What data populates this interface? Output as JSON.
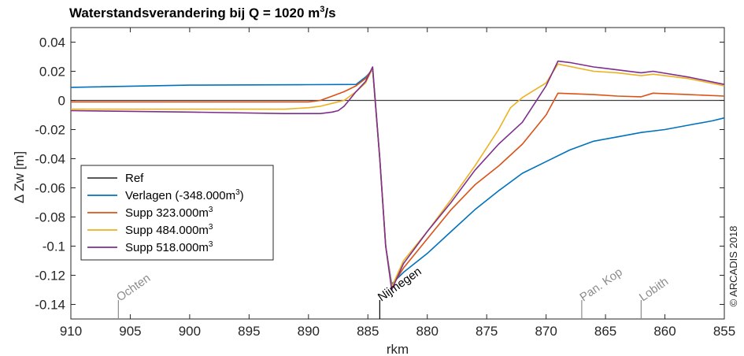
{
  "chart_data": {
    "type": "line",
    "title": {
      "main": "Waterstandsverandering bij Q = 1020 m",
      "sup": "3",
      "tail": "/s"
    },
    "xlabel": "rkm",
    "ylabel": "Δ Zw [m]",
    "xlim": [
      910,
      855
    ],
    "ylim": [
      -0.15,
      0.05
    ],
    "xticks": [
      910,
      905,
      900,
      895,
      890,
      885,
      880,
      875,
      870,
      865,
      860,
      855
    ],
    "yticks": [
      0.04,
      0.02,
      0,
      -0.02,
      -0.04,
      -0.06,
      -0.08,
      -0.1,
      -0.12,
      -0.14
    ],
    "ytick_labels": [
      "0.04",
      "0.02",
      "0",
      "-0.02",
      "-0.04",
      "-0.06",
      "-0.08",
      "-0.1",
      "-0.12",
      "-0.14"
    ],
    "grid": false,
    "legend_position": "lower-left",
    "series": [
      {
        "name": "Ref",
        "name_sup": "",
        "color": "#404040",
        "x": [
          910,
          855
        ],
        "y": [
          0,
          0
        ]
      },
      {
        "name": "Verlagen (-348.000m",
        "name_sup": "3",
        "name_tail": ")",
        "color": "#0072BD",
        "x": [
          910,
          900,
          890,
          886,
          885.2,
          884.6,
          884,
          883.5,
          883,
          882,
          880,
          878,
          876,
          874,
          872,
          870,
          868,
          866,
          864,
          862,
          860,
          858,
          856,
          855
        ],
        "y": [
          0.009,
          0.0105,
          0.0108,
          0.011,
          0.016,
          0.021,
          -0.04,
          -0.1,
          -0.126,
          -0.118,
          -0.105,
          -0.09,
          -0.075,
          -0.062,
          -0.05,
          -0.042,
          -0.034,
          -0.028,
          -0.025,
          -0.022,
          -0.02,
          -0.017,
          -0.014,
          -0.012
        ]
      },
      {
        "name": "Supp 323.000m",
        "name_sup": "3",
        "name_tail": "",
        "color": "#D95319",
        "x": [
          910,
          900,
          892,
          890,
          889,
          888,
          887,
          886,
          885.2,
          884.6,
          884,
          883.5,
          883,
          882,
          880,
          878,
          876,
          874,
          872,
          870,
          869,
          866,
          864,
          862,
          861,
          858,
          855
        ],
        "y": [
          -0.001,
          -0.001,
          -0.001,
          -0.001,
          0.0,
          0.003,
          0.006,
          0.01,
          0.015,
          0.022,
          -0.04,
          -0.1,
          -0.128,
          -0.115,
          -0.095,
          -0.075,
          -0.058,
          -0.045,
          -0.03,
          -0.01,
          0.005,
          0.004,
          0.003,
          0.0025,
          0.005,
          0.004,
          0.003
        ]
      },
      {
        "name": "Supp 484.000m",
        "name_sup": "3",
        "name_tail": "",
        "color": "#EDB120",
        "x": [
          910,
          900,
          892,
          890,
          889,
          888,
          887,
          886,
          885.2,
          884.6,
          884,
          883.5,
          883,
          882,
          880,
          878,
          876,
          874,
          873,
          872,
          870,
          869,
          866,
          864,
          862,
          861,
          858,
          855
        ],
        "y": [
          -0.006,
          -0.006,
          -0.006,
          -0.005,
          -0.004,
          -0.002,
          0.0,
          0.006,
          0.012,
          0.022,
          -0.04,
          -0.1,
          -0.128,
          -0.11,
          -0.09,
          -0.068,
          -0.045,
          -0.02,
          -0.005,
          0.002,
          0.012,
          0.025,
          0.02,
          0.019,
          0.017,
          0.018,
          0.015,
          0.01
        ]
      },
      {
        "name": "Supp 518.000m",
        "name_sup": "3",
        "name_tail": "",
        "color": "#7E2F8E",
        "x": [
          910,
          900,
          892,
          890,
          889,
          888,
          887.5,
          887,
          886,
          885.2,
          884.6,
          884,
          883.5,
          883,
          882,
          880,
          878,
          876,
          874,
          872,
          870,
          869,
          868,
          866,
          864,
          862,
          861,
          858,
          855
        ],
        "y": [
          -0.007,
          -0.008,
          -0.009,
          -0.009,
          -0.009,
          -0.008,
          -0.007,
          -0.004,
          0.006,
          0.013,
          0.023,
          -0.04,
          -0.1,
          -0.13,
          -0.112,
          -0.09,
          -0.07,
          -0.048,
          -0.03,
          -0.015,
          0.01,
          0.027,
          0.026,
          0.023,
          0.021,
          0.019,
          0.02,
          0.016,
          0.011
        ]
      }
    ],
    "locations": [
      {
        "label": "Ochten",
        "x": 906,
        "color": "#8c8c8c"
      },
      {
        "label": "Nijmegen",
        "x": 884,
        "color": "#000000"
      },
      {
        "label": "Pan. Kop",
        "x": 867,
        "color": "#8c8c8c"
      },
      {
        "label": "Lobith",
        "x": 862,
        "color": "#8c8c8c"
      }
    ],
    "credit": "© ARCADIS 2018"
  }
}
